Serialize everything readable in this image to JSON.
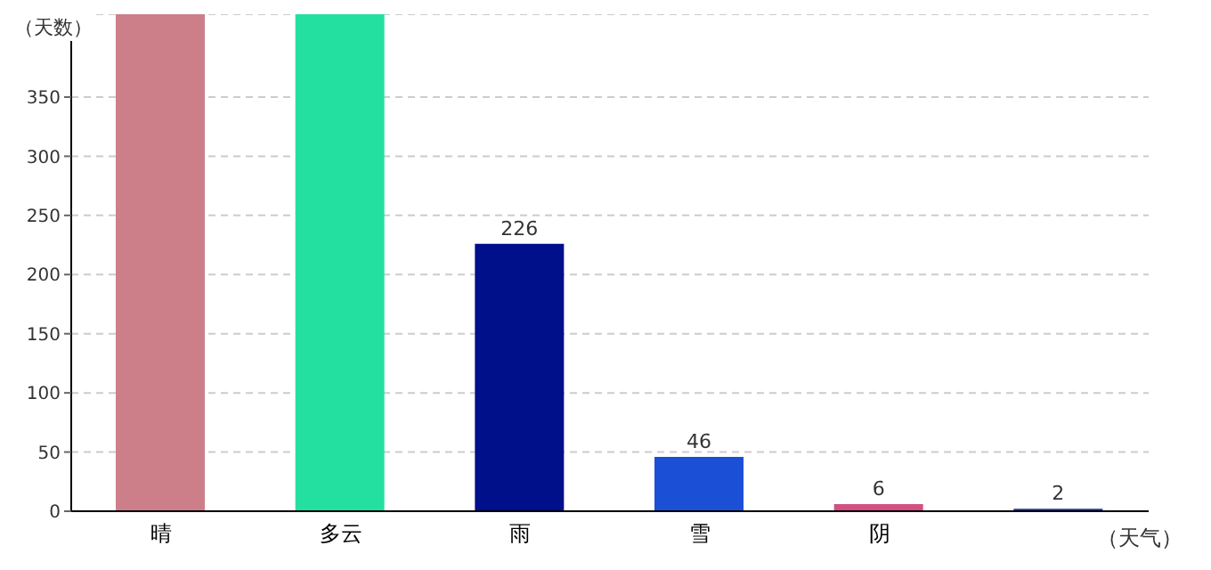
{
  "chart_data": {
    "type": "bar",
    "xlabel": "（天气）",
    "ylabel": "（天数）",
    "categories": [
      "晴",
      "多云",
      "雨",
      "雪",
      "阴",
      null
    ],
    "values": [
      420,
      420,
      226,
      46,
      6,
      2
    ],
    "colors": [
      "#cd7f89",
      "#24e0a0",
      "#000f8a",
      "#1b4fd6",
      "#d24f84",
      "#1b36a8"
    ],
    "value_labels": [
      null,
      null,
      "226",
      "46",
      "6",
      "2"
    ],
    "ylim": [
      0,
      420
    ],
    "yticks": [
      0,
      50,
      100,
      150,
      200,
      250,
      300,
      350
    ],
    "grid": "y"
  }
}
